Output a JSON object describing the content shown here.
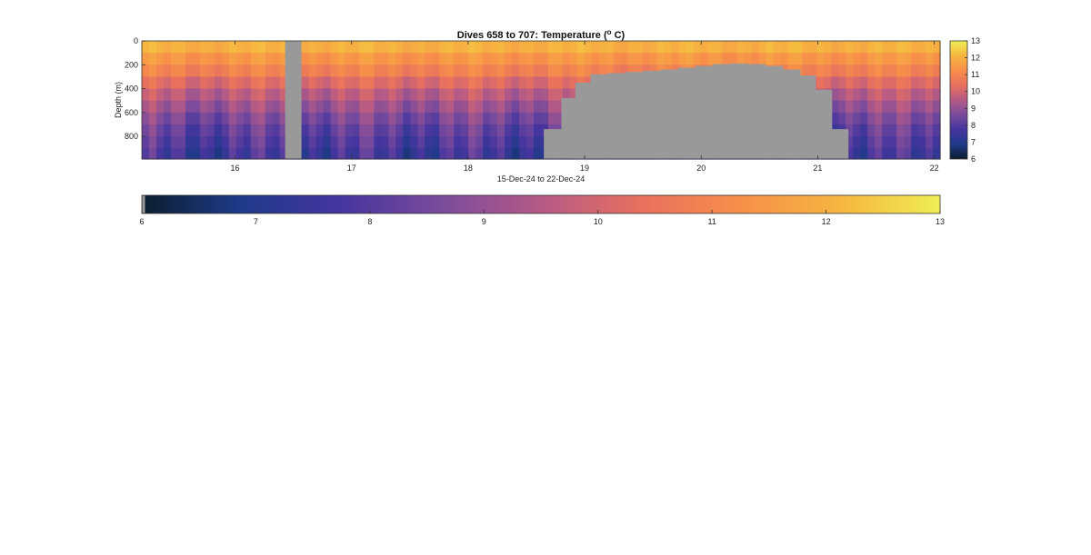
{
  "chart_data": {
    "type": "heatmap",
    "title": "Dives 658 to 707: Temperature (",
    "title_sup": "o",
    "title_end": " C)",
    "xlabel": "15-Dec-24 to 22-Dec-24",
    "ylabel": "Depth (m)",
    "xlim": [
      15.2,
      22.05
    ],
    "ylim": [
      0,
      990
    ],
    "y_reversed": true,
    "x_ticks": [
      "16",
      "17",
      "18",
      "19",
      "20",
      "21",
      "22"
    ],
    "y_ticks": [
      "0",
      "200",
      "400",
      "600",
      "800"
    ],
    "colorbar_ticks": [
      "6",
      "7",
      "8",
      "9",
      "10",
      "11",
      "12",
      "13"
    ],
    "color_range": [
      6,
      13
    ],
    "colormap": [
      "#0b1e2e",
      "#1f3a8a",
      "#45359e",
      "#7a4b9c",
      "#b55a86",
      "#e8705f",
      "#f78f4a",
      "#f6b640",
      "#efee55"
    ],
    "missing_color": "#999999",
    "profiles": {
      "depths": [
        0,
        100,
        200,
        300,
        400,
        500,
        600,
        700,
        800,
        900,
        990
      ],
      "base_temperature": [
        12.0,
        11.4,
        10.9,
        10.2,
        9.6,
        9.1,
        8.6,
        8.2,
        7.9,
        7.6,
        7.4
      ]
    },
    "gaps": [
      {
        "x_start": 16.43,
        "x_end": 16.57,
        "depth_top": 0,
        "depth_bottom": 990
      }
    ],
    "shallow_bottom_profiles": [
      {
        "x": 18.65,
        "max_depth": 740
      },
      {
        "x": 18.8,
        "max_depth": 480
      },
      {
        "x": 18.92,
        "max_depth": 350
      },
      {
        "x": 19.05,
        "max_depth": 280
      },
      {
        "x": 19.2,
        "max_depth": 270
      },
      {
        "x": 19.35,
        "max_depth": 260
      },
      {
        "x": 19.5,
        "max_depth": 250
      },
      {
        "x": 19.65,
        "max_depth": 240
      },
      {
        "x": 19.8,
        "max_depth": 225
      },
      {
        "x": 19.95,
        "max_depth": 210
      },
      {
        "x": 20.1,
        "max_depth": 195
      },
      {
        "x": 20.25,
        "max_depth": 190
      },
      {
        "x": 20.4,
        "max_depth": 195
      },
      {
        "x": 20.55,
        "max_depth": 210
      },
      {
        "x": 20.7,
        "max_depth": 240
      },
      {
        "x": 20.85,
        "max_depth": 290
      },
      {
        "x": 20.98,
        "max_depth": 410
      },
      {
        "x": 21.12,
        "max_depth": 740
      }
    ]
  }
}
